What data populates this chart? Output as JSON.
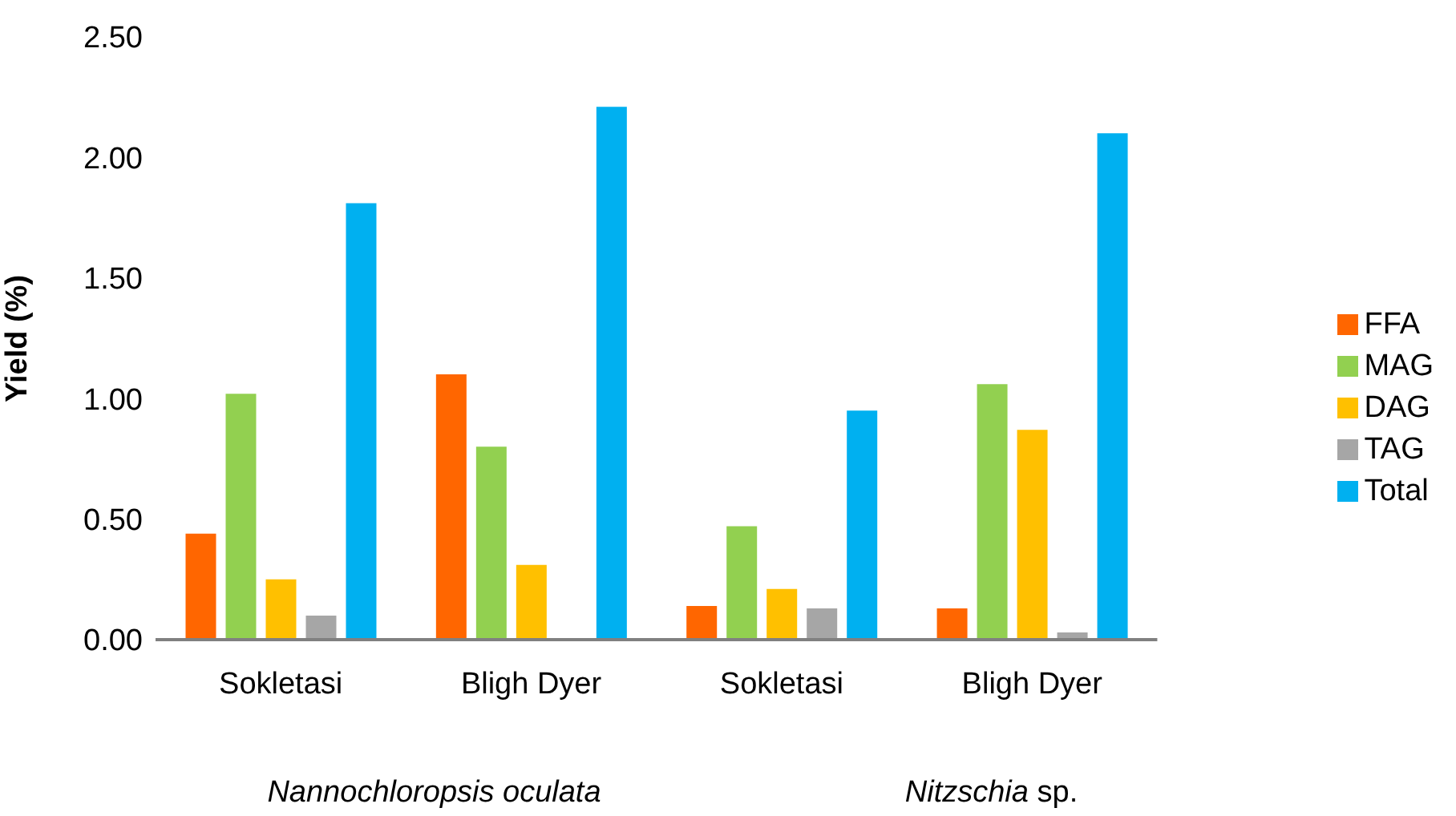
{
  "chart_data": {
    "type": "bar",
    "ylabel": "Yield (%)",
    "categories": [
      "Sokletasi",
      "Bligh Dyer",
      "Sokletasi",
      "Bligh Dyer"
    ],
    "series": [
      {
        "name": "FFA",
        "color": "#ff6600",
        "values": [
          0.44,
          1.1,
          0.14,
          0.13
        ]
      },
      {
        "name": "MAG",
        "color": "#92d050",
        "values": [
          1.02,
          0.8,
          0.47,
          1.06
        ]
      },
      {
        "name": "DAG",
        "color": "#ffc000",
        "values": [
          0.25,
          0.31,
          0.21,
          0.87
        ]
      },
      {
        "name": "TAG",
        "color": "#a6a6a6",
        "values": [
          0.1,
          null,
          0.13,
          0.03
        ]
      },
      {
        "name": "Total",
        "color": "#00b0f0",
        "values": [
          1.81,
          2.21,
          0.95,
          2.1
        ]
      }
    ],
    "ylim": [
      0,
      2.5
    ],
    "yticks": [
      {
        "value": 0,
        "label": "0.00"
      },
      {
        "value": 0.5,
        "label": "0.50"
      },
      {
        "value": 1,
        "label": "1.00"
      },
      {
        "value": 1.5,
        "label": "1.50"
      },
      {
        "value": 2,
        "label": "2.00"
      },
      {
        "value": 2.5,
        "label": "2.50"
      }
    ],
    "annotations": [
      "Nannochloropsis oculata",
      "Nitzschia sp."
    ],
    "grid": false,
    "legend": "right"
  }
}
